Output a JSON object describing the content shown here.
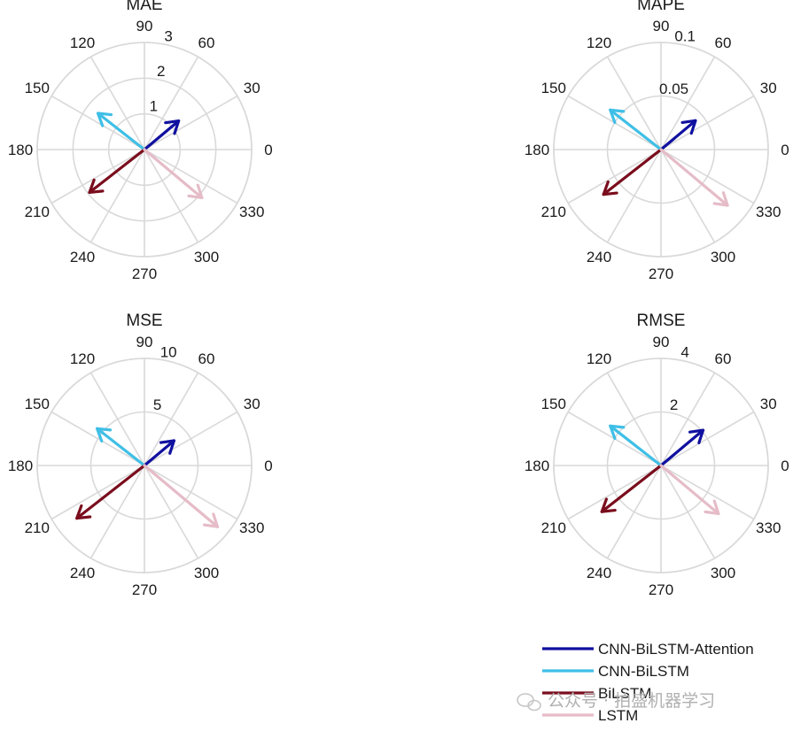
{
  "chart_data": [
    {
      "type": "polar-compass",
      "title": "MAE",
      "rticks": [
        "1",
        "2",
        "3"
      ],
      "rmax": 3,
      "angle_ticks": [
        "0",
        "30",
        "60",
        "90",
        "120",
        "150",
        "180",
        "210",
        "240",
        "270",
        "300",
        "330"
      ],
      "series": [
        {
          "name": "CNN-BiLSTM-Attention",
          "angle": 40,
          "magnitude": 1.25
        },
        {
          "name": "CNN-BiLSTM",
          "angle": 142,
          "magnitude": 1.65
        },
        {
          "name": "BiLSTM",
          "angle": 218,
          "magnitude": 1.95
        },
        {
          "name": "LSTM",
          "angle": 320,
          "magnitude": 2.1
        }
      ]
    },
    {
      "type": "polar-compass",
      "title": "MAPE",
      "rticks": [
        "0.05",
        "0.1"
      ],
      "rmax": 0.1,
      "angle_ticks": [
        "0",
        "30",
        "60",
        "90",
        "120",
        "150",
        "180",
        "210",
        "240",
        "270",
        "300",
        "330"
      ],
      "series": [
        {
          "name": "CNN-BiLSTM-Attention",
          "angle": 40,
          "magnitude": 0.042
        },
        {
          "name": "CNN-BiLSTM",
          "angle": 142,
          "magnitude": 0.06
        },
        {
          "name": "BiLSTM",
          "angle": 218,
          "magnitude": 0.068
        },
        {
          "name": "LSTM",
          "angle": 320,
          "magnitude": 0.081
        }
      ]
    },
    {
      "type": "polar-compass",
      "title": "MSE",
      "rticks": [
        "5",
        "10"
      ],
      "rmax": 10,
      "angle_ticks": [
        "0",
        "30",
        "60",
        "90",
        "120",
        "150",
        "180",
        "210",
        "240",
        "270",
        "300",
        "330"
      ],
      "series": [
        {
          "name": "CNN-BiLSTM-Attention",
          "angle": 40,
          "magnitude": 3.6
        },
        {
          "name": "CNN-BiLSTM",
          "angle": 142,
          "magnitude": 5.6
        },
        {
          "name": "BiLSTM",
          "angle": 218,
          "magnitude": 8.0
        },
        {
          "name": "LSTM",
          "angle": 320,
          "magnitude": 8.9
        }
      ]
    },
    {
      "type": "polar-compass",
      "title": "RMSE",
      "rticks": [
        "2",
        "4"
      ],
      "rmax": 4,
      "angle_ticks": [
        "0",
        "30",
        "60",
        "90",
        "120",
        "150",
        "180",
        "210",
        "240",
        "270",
        "300",
        "330"
      ],
      "series": [
        {
          "name": "CNN-BiLSTM-Attention",
          "angle": 40,
          "magnitude": 2.05
        },
        {
          "name": "CNN-BiLSTM",
          "angle": 142,
          "magnitude": 2.4
        },
        {
          "name": "BiLSTM",
          "angle": 218,
          "magnitude": 2.8
        },
        {
          "name": "LSTM",
          "angle": 320,
          "magnitude": 2.8
        }
      ]
    }
  ],
  "legend": {
    "entries": [
      {
        "name": "CNN-BiLSTM-Attention",
        "color": "#1010a0"
      },
      {
        "name": "CNN-BiLSTM",
        "color": "#3fbfe6"
      },
      {
        "name": "BiLSTM",
        "color": "#7a0d1d"
      },
      {
        "name": "LSTM",
        "color": "#e5bcc8"
      }
    ]
  },
  "colors": {
    "grid": "#d9d9d9",
    "text": "#1a1a1a"
  },
  "watermark": "公众号 · 拍盛机器学习"
}
